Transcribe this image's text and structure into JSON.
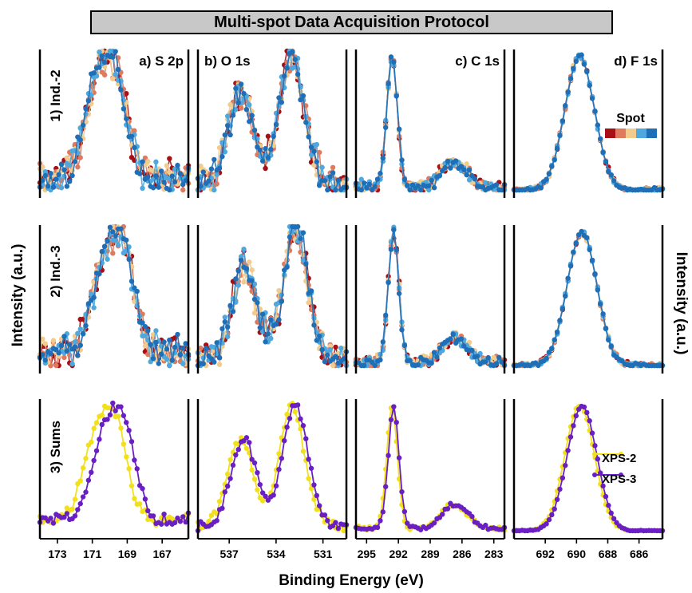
{
  "banner_title": "Multi-spot Data Acquisition Protocol",
  "ylabel_left": "Intensity (a.u.)",
  "ylabel_right": "Intensity (a.u.)",
  "xlabel": "Binding Energy (eV)",
  "legend": {
    "title": "Spot",
    "spot_colors": [
      "#a50f15",
      "#e07a5f",
      "#f2cc8f",
      "#4ea8de",
      "#1f6fb8"
    ]
  },
  "sum_legend": [
    {
      "name": "XPS-2",
      "color": "#f2e11a"
    },
    {
      "name": "XPS-3",
      "color": "#6a1fc4"
    }
  ],
  "chart_data": {
    "type": "line",
    "rows": [
      "1) Ind.-2",
      "2) Ind.-3",
      "3) Sums"
    ],
    "panels": [
      {
        "label": "a) S 2p",
        "xlim": [
          174,
          165.5
        ],
        "ticks": [
          173,
          171,
          169,
          167
        ],
        "peaks": [
          {
            "c": 169.7,
            "w": 0.7,
            "h": 1.0
          },
          {
            "c": 170.9,
            "w": 0.7,
            "h": 0.75
          }
        ],
        "shift3": 0.45,
        "baseline": 0.12,
        "noise": 0.18
      },
      {
        "label": "b) O 1s",
        "xlim": [
          539,
          529.5
        ],
        "ticks": [
          537,
          534,
          531
        ],
        "peaks": [
          {
            "c": 533.0,
            "w": 0.8,
            "h": 1.0
          },
          {
            "c": 536.3,
            "w": 0.8,
            "h": 0.72
          }
        ],
        "shift3": 0.25,
        "baseline": 0.05,
        "noise": 0.14
      },
      {
        "label": "c) C 1s",
        "xlim": [
          296,
          282
        ],
        "ticks": [
          295,
          292,
          289,
          286,
          283
        ],
        "peaks": [
          {
            "c": 292.6,
            "w": 0.5,
            "h": 1.0
          },
          {
            "c": 286.3,
            "w": 1.0,
            "h": 0.15
          },
          {
            "c": 287.6,
            "w": 0.8,
            "h": 0.1
          }
        ],
        "shift3": 0.15,
        "baseline": 0.02,
        "noise": 0.05
      },
      {
        "label": "d) F 1s",
        "xlim": [
          694,
          684.5
        ],
        "ticks": [
          692,
          690,
          688,
          686
        ],
        "peaks": [
          {
            "c": 689.8,
            "w": 0.95,
            "h": 1.0
          }
        ],
        "shift3": 0.15,
        "baseline": 0.0,
        "noise": 0.02
      }
    ]
  }
}
